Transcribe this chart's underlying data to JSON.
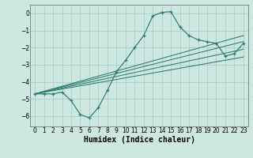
{
  "xlabel": "Humidex (Indice chaleur)",
  "bg_color": "#cce8e0",
  "grid_color": "#aacfc8",
  "line_color": "#2d7a6e",
  "xlim": [
    -0.5,
    23.5
  ],
  "ylim": [
    -6.6,
    0.5
  ],
  "yticks": [
    0,
    -1,
    -2,
    -3,
    -4,
    -5,
    -6
  ],
  "xticks": [
    0,
    1,
    2,
    3,
    4,
    5,
    6,
    7,
    8,
    9,
    10,
    11,
    12,
    13,
    14,
    15,
    16,
    17,
    18,
    19,
    20,
    21,
    22,
    23
  ],
  "curve_x": [
    0,
    1,
    2,
    3,
    4,
    5,
    6,
    7,
    8,
    9,
    10,
    11,
    12,
    13,
    14,
    15,
    16,
    17,
    18,
    19,
    20,
    21,
    22,
    23
  ],
  "curve_y": [
    -4.7,
    -4.7,
    -4.7,
    -4.6,
    -5.1,
    -5.9,
    -6.1,
    -5.5,
    -4.5,
    -3.4,
    -2.75,
    -2.0,
    -1.3,
    -0.15,
    0.05,
    0.1,
    -0.8,
    -1.3,
    -1.55,
    -1.65,
    -1.75,
    -2.5,
    -2.35,
    -1.75
  ],
  "line1_x": [
    0,
    23
  ],
  "line1_y": [
    -4.7,
    -1.3
  ],
  "line2_x": [
    0,
    23
  ],
  "line2_y": [
    -4.7,
    -1.65
  ],
  "line3_x": [
    0,
    23
  ],
  "line3_y": [
    -4.7,
    -2.1
  ],
  "line4_x": [
    0,
    23
  ],
  "line4_y": [
    -4.7,
    -2.55
  ]
}
